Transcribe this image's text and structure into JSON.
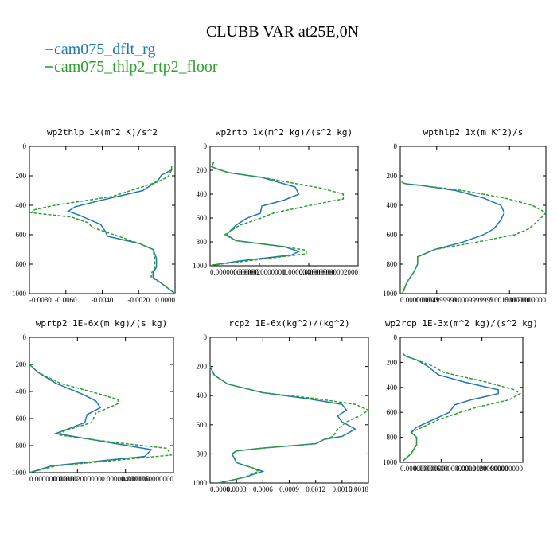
{
  "figure": {
    "title": "CLUBB VAR at25E,0N",
    "legend": [
      {
        "label": "cam075_dflt_rg",
        "color": "#1f77b4"
      },
      {
        "label": "cam075_thlp2_rtp2_floor",
        "color": "#2ca02c"
      }
    ]
  },
  "chart_data": [
    {
      "type": "line",
      "title": "wp2thlp   1x(m^2 K)/s^2",
      "xlim": [
        -0.0085,
        0.0001
      ],
      "ylim": [
        1000,
        0
      ],
      "grid": false,
      "xticks": [
        "-0.0080",
        "-0.0060",
        "-0.0040",
        "-0.0020",
        "0.0000"
      ],
      "yticks": [
        "0",
        "200",
        "400",
        "600",
        "800",
        "1000"
      ],
      "series": [
        {
          "name": "cam075_dflt_rg",
          "x": [
            -0.0001,
            -0.0001,
            -0.0007,
            -0.0009,
            -0.0018,
            -0.0044,
            -0.0058,
            -0.0062,
            -0.0055,
            -0.0043,
            -0.004,
            -0.0039,
            -0.002,
            -0.0012,
            -0.001,
            -0.001,
            -0.0012,
            -0.0012,
            -0.0007,
            0.0001
          ],
          "y": [
            130,
            160,
            195,
            230,
            300,
            370,
            410,
            440,
            470,
            530,
            580,
            610,
            660,
            700,
            760,
            820,
            860,
            890,
            930,
            1000
          ]
        },
        {
          "name": "cam075_thlp2_rtp2_floor",
          "x": [
            -0.0001,
            -0.0001,
            -0.0003,
            -0.0009,
            -0.0036,
            -0.007,
            -0.0082,
            -0.0084,
            -0.006,
            -0.005,
            -0.0048,
            -0.0035,
            -0.002,
            -0.0012,
            -0.0011,
            -0.0011,
            -0.0013,
            -0.0013,
            -0.0007,
            0.0001
          ],
          "y": [
            130,
            160,
            205,
            240,
            340,
            400,
            430,
            450,
            480,
            520,
            550,
            600,
            660,
            700,
            760,
            830,
            860,
            890,
            930,
            1000
          ]
        }
      ]
    },
    {
      "type": "line",
      "title": "wp2rtp   1x(m^2 kg)/(s^2 kg)",
      "xlim": [
        0,
        2e-05
      ],
      "ylim": [
        1000,
        0
      ],
      "grid": false,
      "xticks": [
        "0.000000000000",
        "0.0000020000000",
        "0.0000040000000",
        "0.000006000002000"
      ],
      "yticks": [
        "0",
        "200",
        "400",
        "600",
        "800",
        "1000"
      ],
      "series": [
        {
          "name": "cam075_dflt_rg",
          "x": [
            5e-07,
            2e-07,
            1e-06,
            2.5e-06,
            7e-06,
            1.15e-05,
            1.2e-05,
            1e-05,
            7e-06,
            6.8e-06,
            5e-06,
            3.5e-06,
            2.2e-06,
            3.5e-06,
            1e-05,
            1.2e-05,
            1.1e-05,
            4e-06,
            2e-07
          ],
          "y": [
            130,
            170,
            190,
            220,
            260,
            340,
            400,
            450,
            500,
            560,
            600,
            660,
            740,
            790,
            840,
            880,
            910,
            960,
            995
          ]
        },
        {
          "name": "cam075_thlp2_rtp2_floor",
          "x": [
            5e-07,
            2e-07,
            1e-06,
            2.5e-06,
            7e-06,
            1.5e-05,
            1.8e-05,
            1.8e-05,
            1.3e-05,
            8.5e-06,
            6.5e-06,
            4e-06,
            2e-06,
            3.5e-06,
            1e-05,
            1.3e-05,
            1.3e-05,
            5e-06,
            2e-07
          ],
          "y": [
            130,
            170,
            190,
            220,
            260,
            350,
            400,
            440,
            500,
            560,
            610,
            660,
            740,
            790,
            840,
            870,
            900,
            960,
            995
          ]
        }
      ]
    },
    {
      "type": "line",
      "title": "wpthlp2   1x(m K^2)/s",
      "xlim": [
        0,
        0.0021
      ],
      "ylim": [
        1000,
        0
      ],
      "grid": false,
      "xticks": [
        "0.000000000",
        "0.0004999999",
        "0.0009999999",
        "0.0015000000",
        "0.0020000000"
      ],
      "yticks": [
        "0",
        "200",
        "400",
        "600",
        "800",
        "1000"
      ],
      "series": [
        {
          "name": "cam075_dflt_rg",
          "x": [
            2e-05,
            5e-05,
            0.0001,
            0.0003,
            0.0008,
            0.0012,
            0.00145,
            0.0015,
            0.00145,
            0.00135,
            0.0012,
            0.0009,
            0.0005,
            0.00025,
            0.00025,
            0.0002,
            0.0001,
            3e-05
          ],
          "y": [
            240,
            250,
            255,
            265,
            300,
            350,
            400,
            450,
            500,
            560,
            600,
            650,
            700,
            750,
            800,
            850,
            920,
            1000
          ]
        },
        {
          "name": "cam075_thlp2_rtp2_floor",
          "x": [
            2e-05,
            5e-05,
            0.0001,
            0.0003,
            0.0009,
            0.0015,
            0.0019,
            0.0021,
            0.002,
            0.00185,
            0.00165,
            0.0011,
            0.0005,
            0.00025,
            0.00025,
            0.0002,
            0.0001,
            3e-05
          ],
          "y": [
            240,
            250,
            255,
            265,
            300,
            350,
            400,
            450,
            500,
            560,
            600,
            650,
            700,
            750,
            800,
            850,
            920,
            1000
          ]
        }
      ]
    },
    {
      "type": "line",
      "title": "wprtp2   1E-6x(m kg)/(s kg)",
      "xlim": [
        0,
        6.5e-06
      ],
      "ylim": [
        1000,
        0
      ],
      "grid": false,
      "xticks": [
        "0.000000000000",
        "0.000002000000",
        "0.000004000000",
        "0.0000060000000"
      ],
      "yticks": [
        "0",
        "200",
        "400",
        "600",
        "800",
        "1000"
      ],
      "series": [
        {
          "name": "cam075_dflt_rg",
          "x": [
            0.0,
            4e-07,
            1.2e-06,
            2.4e-06,
            3e-06,
            3.2e-06,
            2.6e-06,
            2.5e-06,
            1.7e-06,
            1.2e-06,
            3e-06,
            5.5e-06,
            5.2e-06,
            1e-06,
            0.0
          ],
          "y": [
            200,
            260,
            340,
            420,
            470,
            520,
            570,
            630,
            680,
            710,
            760,
            830,
            880,
            950,
            1000
          ]
        },
        {
          "name": "cam075_thlp2_rtp2_floor",
          "x": [
            0.0,
            4e-07,
            1.4e-06,
            3.2e-06,
            4e-06,
            4e-06,
            3e-06,
            2.8e-06,
            1.6e-06,
            1.3e-06,
            3.5e-06,
            6.2e-06,
            6.4e-06,
            1.2e-06,
            0.0
          ],
          "y": [
            200,
            260,
            340,
            420,
            460,
            490,
            560,
            630,
            690,
            720,
            770,
            820,
            870,
            950,
            1000
          ]
        }
      ]
    },
    {
      "type": "line",
      "title": "rcp2   1E-6x(kg^2)/(kg^2)",
      "xlim": [
        0,
        0.0018
      ],
      "ylim": [
        1000,
        0
      ],
      "grid": false,
      "xticks": [
        "0.0000",
        "0.0003",
        "0.0006",
        "0.0009",
        "0.0012",
        "0.0015",
        "0.0018"
      ],
      "yticks": [
        "0",
        "200",
        "400",
        "600",
        "800",
        "1000"
      ],
      "series": [
        {
          "name": "cam075_dflt_rg",
          "x": [
            0.0,
            5e-05,
            0.0002,
            0.0006,
            0.0011,
            0.0015,
            0.00155,
            0.00145,
            0.0015,
            0.00165,
            0.0015,
            0.0013,
            0.0012,
            0.0006,
            0.0003,
            0.00025,
            0.0003,
            0.0005,
            0.0006,
            0.0004,
            0.0001
          ],
          "y": [
            200,
            260,
            320,
            380,
            420,
            460,
            500,
            540,
            580,
            630,
            680,
            700,
            730,
            760,
            780,
            800,
            860,
            900,
            920,
            960,
            1000
          ]
        },
        {
          "name": "cam075_thlp2_rtp2_floor",
          "x": [
            0.0,
            5e-05,
            0.0002,
            0.0006,
            0.0012,
            0.00165,
            0.0018,
            0.0017,
            0.00155,
            0.00145,
            0.0014,
            0.0013,
            0.0012,
            0.0006,
            0.0003,
            0.00025,
            0.0003,
            0.0005,
            0.00055,
            0.0004,
            0.0001
          ],
          "y": [
            200,
            260,
            320,
            380,
            420,
            460,
            500,
            540,
            580,
            630,
            680,
            700,
            730,
            760,
            780,
            800,
            860,
            900,
            920,
            960,
            1000
          ]
        }
      ]
    },
    {
      "type": "line",
      "title": "wp2rcp   1E-3x(m^2 kg)/(s^2 kg)",
      "xlim": [
        0,
        2.25e-05
      ],
      "ylim": [
        1000,
        0
      ],
      "grid": false,
      "xticks": [
        "0.000000000000",
        "0.00000600000000",
        "0.0000120000000",
        "0.00001800000000"
      ],
      "yticks": [
        "0",
        "200",
        "400",
        "600",
        "800",
        "1000"
      ],
      "series": [
        {
          "name": "cam075_dflt_rg",
          "x": [
            5e-07,
            1e-06,
            3e-06,
            5e-06,
            7e-06,
            1.2e-05,
            1.8e-05,
            1.8e-05,
            1.3e-05,
            1e-05,
            9e-06,
            6e-06,
            3e-06,
            2e-06,
            3e-06,
            3e-06,
            2e-06,
            5e-07
          ],
          "y": [
            130,
            150,
            180,
            230,
            300,
            360,
            420,
            450,
            500,
            540,
            600,
            660,
            720,
            760,
            800,
            860,
            930,
            990
          ]
        },
        {
          "name": "cam075_thlp2_rtp2_floor",
          "x": [
            5e-07,
            1e-06,
            3e-06,
            6e-06,
            8e-06,
            1.6e-05,
            2.1e-05,
            2.2e-05,
            2e-05,
            1.4e-05,
            1.1e-05,
            7e-06,
            4e-06,
            2e-06,
            3e-06,
            3e-06,
            2e-06,
            5e-07
          ],
          "y": [
            130,
            150,
            180,
            230,
            280,
            360,
            420,
            450,
            500,
            560,
            600,
            660,
            720,
            760,
            800,
            860,
            930,
            990
          ]
        }
      ]
    }
  ]
}
